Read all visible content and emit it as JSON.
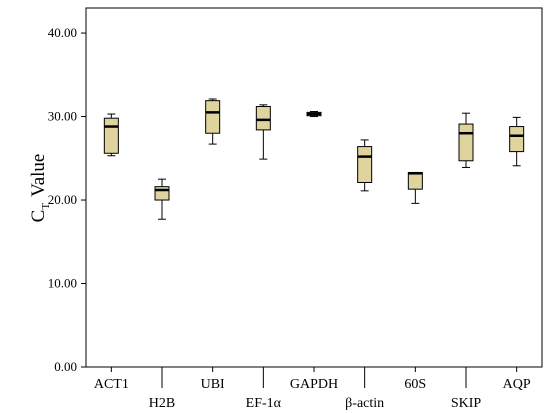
{
  "chart_data": {
    "type": "boxplot",
    "title": "",
    "ylabel": {
      "main": "C",
      "subscript": "T",
      "rest": "Value"
    },
    "xlabel": "",
    "ylim": [
      0,
      43
    ],
    "yticks": [
      0,
      10,
      20,
      30,
      40
    ],
    "ytick_labels": [
      "0.00",
      "10.00",
      "20.00",
      "30.00",
      "40.00"
    ],
    "grid": false,
    "legend": "none",
    "colors": {
      "box_fill": "#dfd49d",
      "box_stroke": "#000000",
      "median": "#000000",
      "plot_bg": "#ffffff"
    },
    "categories": [
      "ACT1",
      "H2B",
      "UBI",
      "EF-1α",
      "GAPDH",
      "β-actin",
      "60S",
      "SKIP",
      "AQP"
    ],
    "boxes": [
      {
        "category": "ACT1",
        "min": 25.3,
        "q1": 25.6,
        "median": 28.8,
        "q3": 29.8,
        "max": 30.3
      },
      {
        "category": "H2B",
        "min": 17.7,
        "q1": 20.0,
        "median": 21.2,
        "q3": 21.6,
        "max": 22.5
      },
      {
        "category": "UBI",
        "min": 26.7,
        "q1": 28.0,
        "median": 30.5,
        "q3": 31.9,
        "max": 32.1
      },
      {
        "category": "EF-1α",
        "min": 24.9,
        "q1": 28.4,
        "median": 29.6,
        "q3": 31.2,
        "max": 31.4
      },
      {
        "category": "GAPDH",
        "min": 30.0,
        "q1": 30.1,
        "median": 30.3,
        "q3": 30.5,
        "max": 30.6
      },
      {
        "category": "β-actin",
        "min": 21.1,
        "q1": 22.1,
        "median": 25.2,
        "q3": 26.4,
        "max": 27.2
      },
      {
        "category": "60S",
        "min": 19.6,
        "q1": 21.3,
        "median": 23.2,
        "q3": 23.3,
        "max": 23.3
      },
      {
        "category": "SKIP",
        "min": 23.9,
        "q1": 24.7,
        "median": 28.0,
        "q3": 29.1,
        "max": 30.4
      },
      {
        "category": "AQP",
        "min": 24.1,
        "q1": 25.8,
        "median": 27.7,
        "q3": 28.8,
        "max": 29.9
      }
    ]
  }
}
